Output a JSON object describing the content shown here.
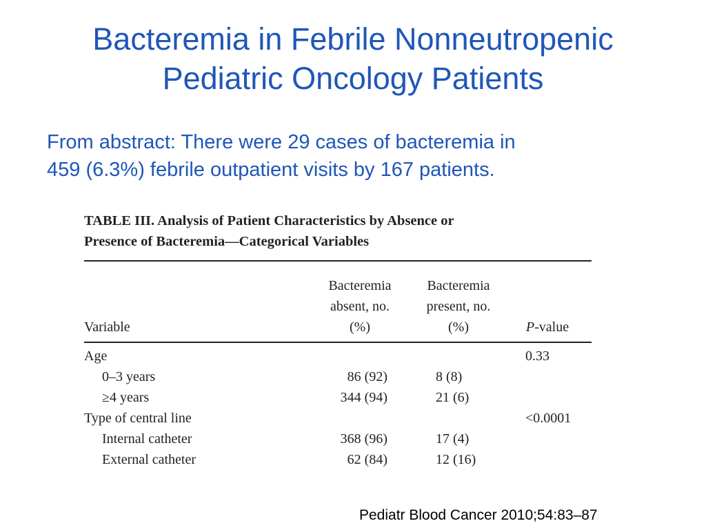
{
  "slide": {
    "title_line1": "Bacteremia in Febrile Nonneutropenic",
    "title_line2": "Pediatric Oncology Patients",
    "abstract_line1": "From abstract: There were 29 cases of bacteremia in",
    "abstract_line2": "459 (6.3%) febrile outpatient visits by 167 patients.",
    "citation": "Pediatr Blood Cancer 2010;54:83–87"
  },
  "table": {
    "caption_line1": "TABLE III.  Analysis of Patient Characteristics by Absence or",
    "caption_line2": "Presence of Bacteremia—Categorical Variables",
    "headers": {
      "variable": "Variable",
      "absent_line1": "Bacteremia",
      "absent_line2": "absent, no.",
      "absent_line3": "(%)",
      "present_line1": "Bacteremia",
      "present_line2": "present, no.",
      "present_line3": "(%)",
      "pvalue_italic": "P",
      "pvalue_rest": "-value"
    },
    "rows": [
      {
        "variable": "Age",
        "absent": "",
        "present": "",
        "p": "0.33"
      },
      {
        "variable": "0–3 years",
        "absent": "86 (92)",
        "present": "8 (8)",
        "p": ""
      },
      {
        "variable": "≥4 years",
        "absent": "344 (94)",
        "present": "21 (6)",
        "p": ""
      },
      {
        "variable": "Type of central line",
        "absent": "",
        "present": "",
        "p": "<0.0001"
      },
      {
        "variable": "Internal catheter",
        "absent": "368 (96)",
        "present": "17 (4)",
        "p": ""
      },
      {
        "variable": "External catheter",
        "absent": "62 (84)",
        "present": "12 (16)",
        "p": ""
      }
    ]
  },
  "colors": {
    "title": "#1f56b8",
    "table_text": "#222222"
  }
}
